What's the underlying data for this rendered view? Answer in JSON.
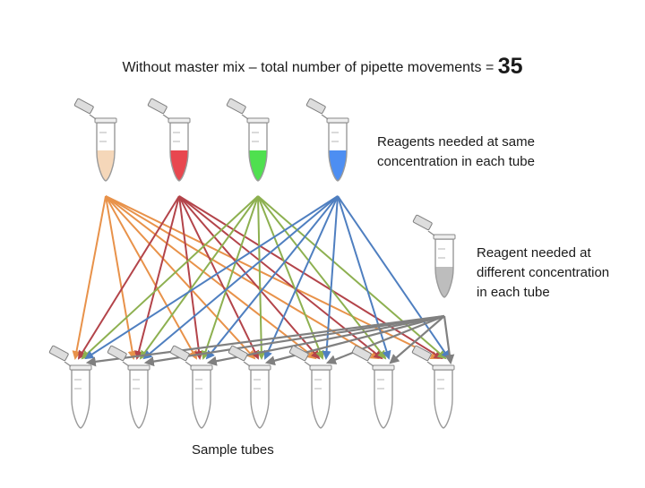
{
  "header": {
    "text": "Without master mix – total number of pipette movements =",
    "count": "35"
  },
  "labels": {
    "same_line1": "Reagents needed at same",
    "same_line2": "concentration in each tube",
    "diff_line1": "Reagent needed at",
    "diff_line2": "different concentration",
    "diff_line3": "in each tube",
    "samples": "Sample tubes"
  },
  "reagents": [
    {
      "liquid": "#f5d7b9",
      "arrow": "#e8924a"
    },
    {
      "liquid": "#e8474f",
      "arrow": "#b3444a"
    },
    {
      "liquid": "#4fe04f",
      "arrow": "#8db050"
    },
    {
      "liquid": "#4d8ef2",
      "arrow": "#4f7fc0"
    }
  ],
  "variable_reagent": {
    "liquid": "#bdbdbd",
    "arrow": "#808080"
  },
  "sample_tube_count": 7
}
